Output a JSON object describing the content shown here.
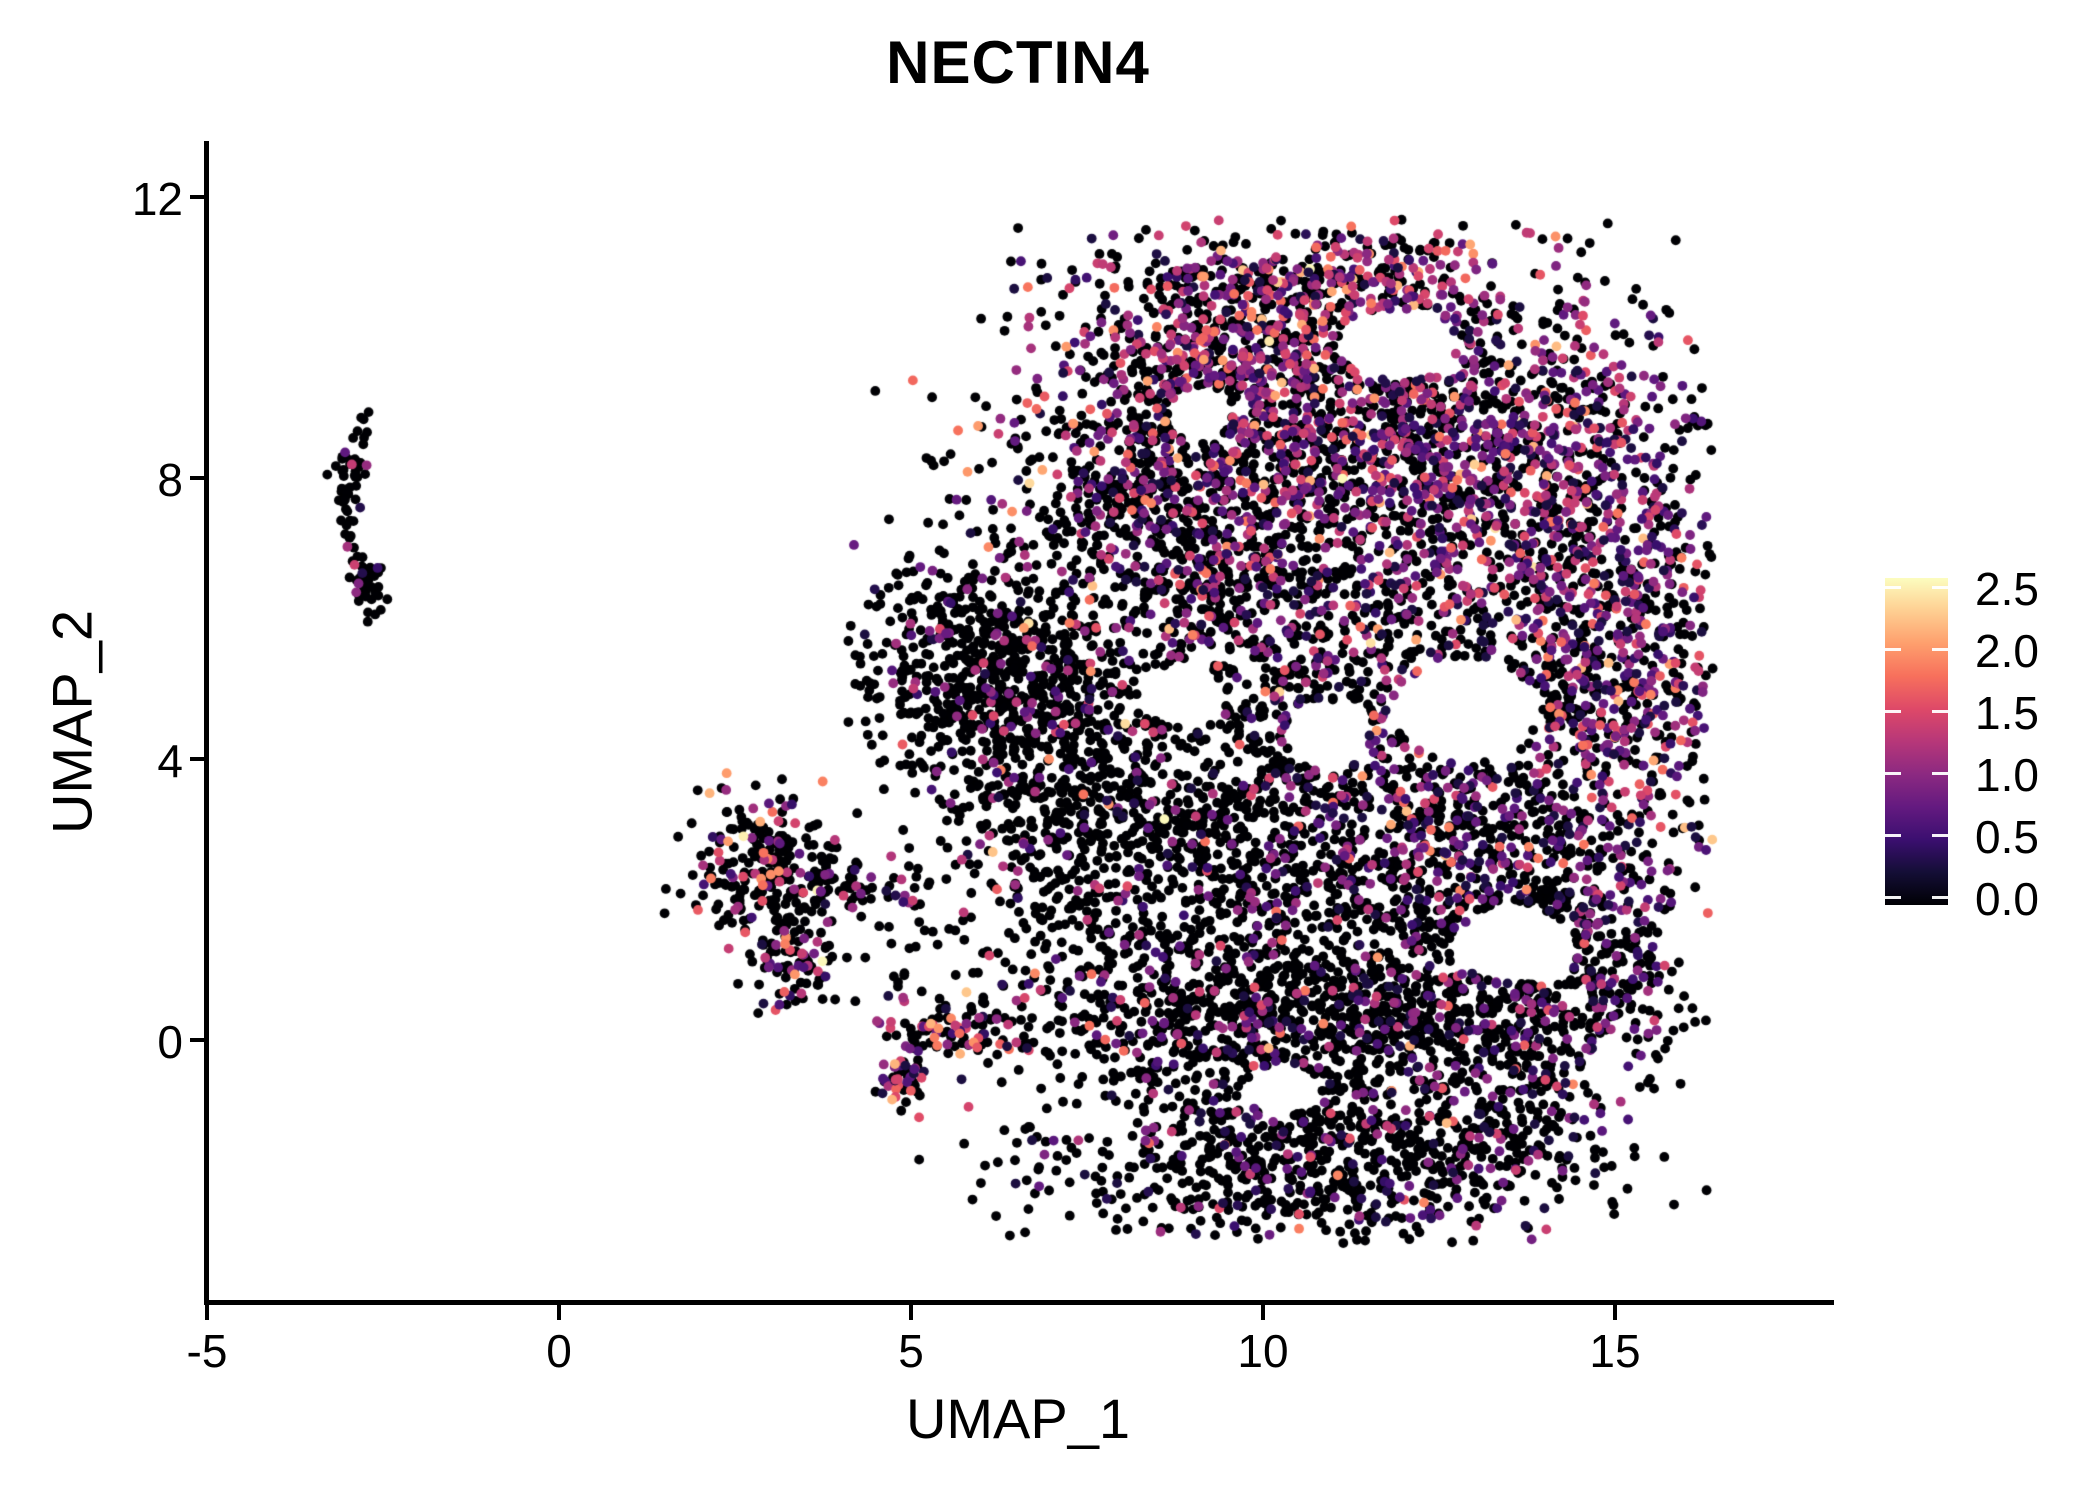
{
  "title": "NECTIN4",
  "axes": {
    "x": {
      "label": "UMAP_1",
      "ticks": [
        "-5",
        "0",
        "5",
        "10",
        "15"
      ],
      "tick_values": [
        -5,
        0,
        5,
        10,
        15
      ]
    },
    "y": {
      "label": "UMAP_2",
      "ticks": [
        "0",
        "4",
        "8",
        "12"
      ],
      "tick_values": [
        0,
        4,
        8,
        12
      ]
    }
  },
  "legend": {
    "labels": [
      "2.5",
      "2.0",
      "1.5",
      "1.0",
      "0.5",
      "0.0"
    ],
    "values": [
      2.5,
      2.0,
      1.5,
      1.0,
      0.5,
      0.0
    ],
    "vmin": 0.0,
    "vmax": 2.5
  },
  "colormap": {
    "name": "magma",
    "stops": [
      [
        0,
        "#000004"
      ],
      [
        0.1,
        "#140e36"
      ],
      [
        0.2,
        "#3b0f70"
      ],
      [
        0.3,
        "#641a80"
      ],
      [
        0.4,
        "#8c2981"
      ],
      [
        0.5,
        "#b73779"
      ],
      [
        0.6,
        "#de4968"
      ],
      [
        0.7,
        "#f7705c"
      ],
      [
        0.8,
        "#fe9f6d"
      ],
      [
        0.9,
        "#fecf92"
      ],
      [
        1,
        "#fcfdbf"
      ]
    ]
  },
  "chart_data": {
    "type": "scatter",
    "title": "NECTIN4",
    "xlabel": "UMAP_1",
    "ylabel": "UMAP_2",
    "xlim": [
      -5,
      18.04
    ],
    "ylim": [
      -3.73,
      12.77
    ],
    "xticks": [
      -5,
      0,
      5,
      10,
      15
    ],
    "yticks": [
      0,
      4,
      8,
      12
    ],
    "grid": false,
    "legend_position": "right",
    "colorbar": {
      "label_values": [
        0.0,
        0.5,
        1.0,
        1.5,
        2.0,
        2.5
      ],
      "vmin": 0.0,
      "vmax": 2.5,
      "colormap": "magma"
    },
    "point_radius_px": 4.9,
    "seed": 1337,
    "representation": "density_clusters",
    "n_points_approx": 9600,
    "clusters": [
      {
        "name": "left_strip",
        "cx": -2.95,
        "cy": 7.95,
        "sx": 0.13,
        "sy": 0.42,
        "n": 58,
        "colored_frac": 0.14,
        "hot": 0.75,
        "main": false
      },
      {
        "name": "left_low_blob",
        "cx": -2.72,
        "cy": 6.5,
        "sx": 0.12,
        "sy": 0.28,
        "n": 38,
        "colored_frac": 0.13,
        "hot": 0.45,
        "main": false
      },
      {
        "name": "mid_main_blob",
        "cx": 2.95,
        "cy": 2.35,
        "sx": 0.5,
        "sy": 0.55,
        "n": 240,
        "colored_frac": 0.2,
        "hot": 0.8,
        "main": false
      },
      {
        "name": "mid_chain",
        "cx": 4.15,
        "cy": 2.2,
        "sx": 0.55,
        "sy": 0.18,
        "n": 60,
        "colored_frac": 0.3,
        "hot": 0.7,
        "main": false
      },
      {
        "name": "mid_low",
        "cx": 3.35,
        "cy": 1.0,
        "sx": 0.3,
        "sy": 0.3,
        "n": 70,
        "colored_frac": 0.25,
        "hot": 0.5,
        "main": false
      },
      {
        "name": "mid_small_blob",
        "cx": 4.85,
        "cy": -0.5,
        "sx": 0.17,
        "sy": 0.2,
        "n": 45,
        "colored_frac": 0.5,
        "hot": 0.55,
        "main": false
      },
      {
        "name": "mid_strip",
        "cx": 5.75,
        "cy": 0.15,
        "sx": 0.55,
        "sy": 0.16,
        "n": 85,
        "colored_frac": 0.42,
        "hot": 0.65,
        "main": false
      },
      {
        "name": "mid_sparse",
        "cx": 4.6,
        "cy": 1.1,
        "sx": 0.8,
        "sy": 0.8,
        "n": 30,
        "colored_frac": 0.15,
        "hot": 0.5,
        "main": false
      },
      {
        "name": "top_cap",
        "cx": 10.7,
        "cy": 10.6,
        "sx": 1.55,
        "sy": 0.6,
        "n": 430,
        "colored_frac": 0.55,
        "hot": 0.62,
        "main": true
      },
      {
        "name": "upper_band",
        "cx": 10.9,
        "cy": 9.2,
        "sx": 1.9,
        "sy": 0.85,
        "n": 760,
        "colored_frac": 0.55,
        "hot": 0.58,
        "main": true
      },
      {
        "name": "upper_left_shoulder",
        "cx": 8.9,
        "cy": 9.5,
        "sx": 0.85,
        "sy": 0.85,
        "n": 260,
        "colored_frac": 0.45,
        "hot": 0.55,
        "main": true
      },
      {
        "name": "upper_right",
        "cx": 13.7,
        "cy": 8.2,
        "sx": 1.4,
        "sy": 1.05,
        "n": 700,
        "colored_frac": 0.6,
        "hot": 0.5,
        "main": true
      },
      {
        "name": "right_lobe",
        "cx": 14.9,
        "cy": 5.4,
        "sx": 1.05,
        "sy": 1.6,
        "n": 730,
        "colored_frac": 0.55,
        "hot": 0.38,
        "main": true
      },
      {
        "name": "center",
        "cx": 10.8,
        "cy": 6.2,
        "sx": 1.8,
        "sy": 1.35,
        "n": 900,
        "colored_frac": 0.45,
        "hot": 0.48,
        "main": true
      },
      {
        "name": "center_left_upper",
        "cx": 8.5,
        "cy": 7.5,
        "sx": 1.15,
        "sy": 1.0,
        "n": 500,
        "colored_frac": 0.28,
        "hot": 0.45,
        "main": true
      },
      {
        "name": "left_tip",
        "cx": 5.95,
        "cy": 5.3,
        "sx": 0.85,
        "sy": 0.85,
        "n": 560,
        "colored_frac": 0.1,
        "hot": 0.45,
        "main": true
      },
      {
        "name": "left_mid",
        "cx": 7.3,
        "cy": 3.6,
        "sx": 1.05,
        "sy": 1.3,
        "n": 600,
        "colored_frac": 0.1,
        "hot": 0.45,
        "main": true
      },
      {
        "name": "mid_low_main",
        "cx": 9.7,
        "cy": 2.3,
        "sx": 1.6,
        "sy": 1.5,
        "n": 820,
        "colored_frac": 0.14,
        "hot": 0.4,
        "main": true
      },
      {
        "name": "right_low",
        "cx": 12.7,
        "cy": 2.7,
        "sx": 1.4,
        "sy": 1.35,
        "n": 640,
        "colored_frac": 0.35,
        "hot": 0.32,
        "main": true
      },
      {
        "name": "bottom_band",
        "cx": 11.2,
        "cy": 0.35,
        "sx": 2.3,
        "sy": 0.5,
        "n": 720,
        "colored_frac": 0.2,
        "hot": 0.3,
        "main": true
      },
      {
        "name": "bottom_lobe",
        "cx": 10.7,
        "cy": -1.6,
        "sx": 1.85,
        "sy": 0.85,
        "n": 760,
        "colored_frac": 0.18,
        "hot": 0.28,
        "main": true
      },
      {
        "name": "bottom_right_small",
        "cx": 13.35,
        "cy": -1.3,
        "sx": 0.65,
        "sy": 0.6,
        "n": 180,
        "colored_frac": 0.25,
        "hot": 0.28,
        "main": true
      },
      {
        "name": "right_bottom_edge",
        "cx": 14.35,
        "cy": 1.1,
        "sx": 0.8,
        "sy": 0.95,
        "n": 280,
        "colored_frac": 0.4,
        "hot": 0.32,
        "main": true
      },
      {
        "name": "sparse_halo",
        "cx": 10.4,
        "cy": 4.6,
        "sx": 3.6,
        "sy": 4.6,
        "n": 260,
        "colored_frac": 0.2,
        "hot": 0.4,
        "main": true
      }
    ],
    "main_bounds": {
      "xmin": 4.05,
      "xmax": 16.4,
      "ymin": -2.9,
      "ymax": 11.68
    },
    "holes": [
      {
        "cx": 11.9,
        "cy": 9.9,
        "rx": 0.85,
        "ry": 0.5
      },
      {
        "cx": 12.9,
        "cy": 4.7,
        "rx": 1.0,
        "ry": 0.75
      },
      {
        "cx": 10.9,
        "cy": 4.35,
        "rx": 0.6,
        "ry": 0.5
      },
      {
        "cx": 8.85,
        "cy": 4.9,
        "rx": 0.6,
        "ry": 0.45
      },
      {
        "cx": 13.6,
        "cy": 1.35,
        "rx": 0.85,
        "ry": 0.55
      },
      {
        "cx": 9.1,
        "cy": 8.9,
        "rx": 0.45,
        "ry": 0.4
      },
      {
        "cx": 10.3,
        "cy": -0.65,
        "rx": 0.5,
        "ry": 0.33
      }
    ]
  }
}
